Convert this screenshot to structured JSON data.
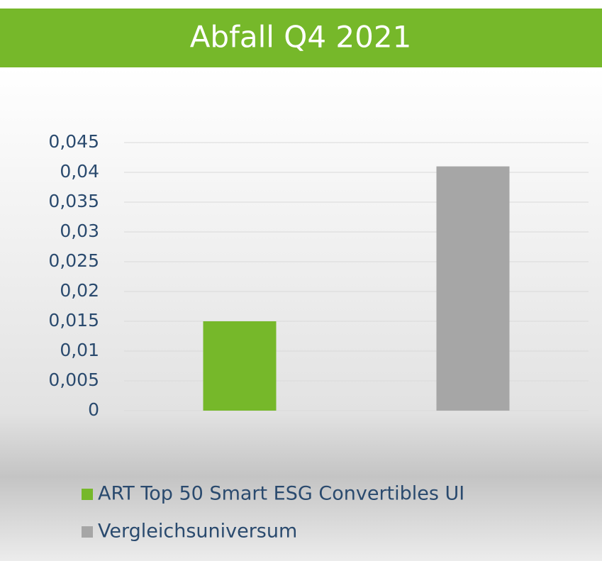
{
  "chart_data": {
    "type": "bar",
    "title": "Abfall Q4 2021",
    "categories": [
      null
    ],
    "series": [
      {
        "name": "ART Top 50 Smart ESG Convertibles UI",
        "color": "#76b82a",
        "values": [
          0.015
        ]
      },
      {
        "name": "Vergleichsuniversum",
        "color": "#a6a6a6",
        "values": [
          0.041
        ]
      }
    ],
    "ylim": [
      0,
      0.045
    ],
    "yticks": [
      0,
      {
        "value": 0.005,
        "label": "0,005"
      },
      {
        "value": 0.01,
        "label": "0,01"
      },
      {
        "value": 0.015,
        "label": "0,015"
      },
      {
        "value": 0.02,
        "label": "0,02"
      },
      {
        "value": 0.025,
        "label": "0,025"
      },
      {
        "value": 0.03,
        "label": "0,03"
      },
      {
        "value": 0.035,
        "label": "0,035"
      },
      {
        "value": 0.04,
        "label": "0,04"
      },
      {
        "value": 0.045,
        "label": "0,045"
      }
    ],
    "grid": true,
    "legend": "bottom"
  }
}
